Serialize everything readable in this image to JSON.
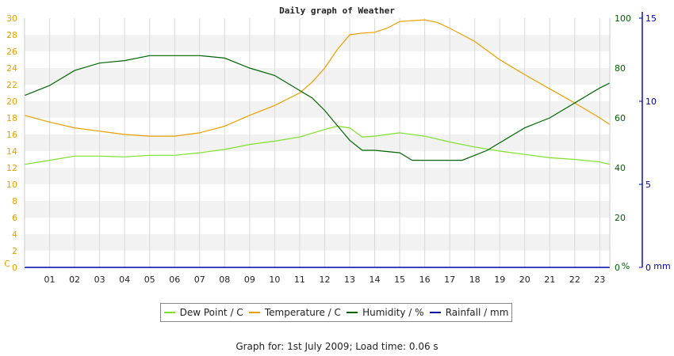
{
  "chart_data": {
    "type": "line",
    "title": "Daily graph of Weather",
    "x_ticks": [
      "01",
      "02",
      "03",
      "04",
      "05",
      "06",
      "07",
      "08",
      "09",
      "10",
      "11",
      "12",
      "13",
      "14",
      "15",
      "16",
      "17",
      "18",
      "19",
      "20",
      "21",
      "22",
      "23"
    ],
    "xlim": [
      0,
      23.4
    ],
    "axes": {
      "left": {
        "unit_label": "C",
        "ylim": [
          0,
          30
        ],
        "ticks": [
          0,
          2,
          4,
          6,
          8,
          10,
          12,
          14,
          16,
          18,
          20,
          22,
          24,
          26,
          28,
          30
        ],
        "color": "#e8a000"
      },
      "right1": {
        "unit_label": "%",
        "ylim": [
          0,
          100
        ],
        "ticks": [
          0,
          20,
          40,
          60,
          80,
          100
        ],
        "color": "#006400"
      },
      "right2": {
        "unit_label": "mm",
        "ylim": [
          0,
          15
        ],
        "ticks": [
          0,
          5,
          10,
          15
        ],
        "color": "#0000aa"
      }
    },
    "grid": true,
    "legend_position": "bottom",
    "series": [
      {
        "name": "Dew Point / C",
        "axis": "left",
        "color": "#7fe02a",
        "x": [
          0,
          1,
          2,
          3,
          4,
          5,
          6,
          7,
          8,
          9,
          10,
          11,
          12,
          12.5,
          13,
          13.5,
          14,
          15,
          16,
          17,
          18,
          19,
          20,
          21,
          22,
          23,
          23.4
        ],
        "values": [
          12.4,
          12.9,
          13.4,
          13.4,
          13.3,
          13.5,
          13.5,
          13.8,
          14.2,
          14.8,
          15.2,
          15.7,
          16.6,
          17.0,
          16.8,
          15.7,
          15.8,
          16.2,
          15.8,
          15.1,
          14.5,
          14.0,
          13.6,
          13.2,
          13.0,
          12.7,
          12.4
        ]
      },
      {
        "name": "Temperature / C",
        "axis": "left",
        "color": "#e8a000",
        "x": [
          0,
          1,
          2,
          3,
          4,
          5,
          6,
          7,
          8,
          9,
          10,
          11,
          11.5,
          12,
          12.5,
          13,
          13.5,
          14,
          14.5,
          15,
          15.5,
          16,
          16.5,
          17,
          18,
          19,
          20,
          21,
          22,
          23,
          23.4
        ],
        "values": [
          18.3,
          17.5,
          16.8,
          16.4,
          16.0,
          15.8,
          15.8,
          16.2,
          17.0,
          18.3,
          19.5,
          21.0,
          22.3,
          24.0,
          26.2,
          28.0,
          28.2,
          28.3,
          28.8,
          29.6,
          29.7,
          29.8,
          29.5,
          28.8,
          27.2,
          25.0,
          23.2,
          21.5,
          19.8,
          18.0,
          17.2
        ]
      },
      {
        "name": "Humidity / %",
        "axis": "right1",
        "color": "#006400",
        "x": [
          0,
          1,
          2,
          3,
          4,
          5,
          6,
          7,
          8,
          9,
          10,
          11,
          11.5,
          12,
          12.5,
          13,
          13.5,
          14,
          15,
          15.5,
          16,
          16.5,
          17,
          17.5,
          18,
          18.5,
          19,
          19.5,
          20,
          21,
          22,
          23,
          23.4
        ],
        "values": [
          69,
          73,
          79,
          82,
          83,
          85,
          85,
          85,
          84,
          80,
          77,
          71,
          68,
          63,
          57,
          51,
          47,
          47,
          46,
          43,
          43,
          43,
          43,
          43,
          45,
          47,
          50,
          53,
          56,
          60,
          66,
          72,
          74
        ]
      },
      {
        "name": "Rainfall / mm",
        "axis": "right2",
        "color": "#0000aa",
        "x": [
          0,
          23.4
        ],
        "values": [
          0,
          0
        ]
      }
    ],
    "footer": "Graph for: 1st July 2009; Load time: 0.06 s"
  }
}
